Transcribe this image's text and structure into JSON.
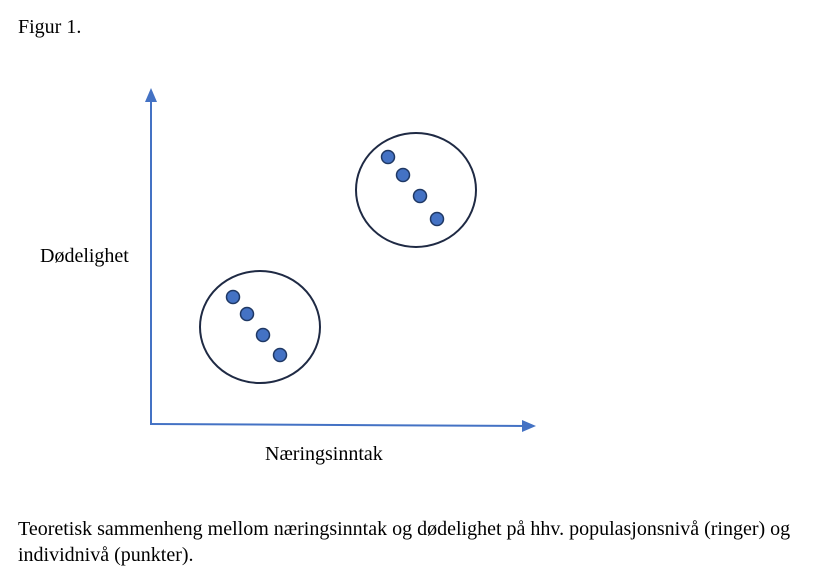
{
  "header": {
    "title": "Figur 1."
  },
  "diagram": {
    "y_axis_label": "Dødelighet",
    "x_axis_label": "Næringsinntak"
  },
  "caption": "Teoretisk sammenheng mellom næringsinntak og dødelighet på hhv. populasjonsnivå (ringer) og individnivå (punkter)."
}
